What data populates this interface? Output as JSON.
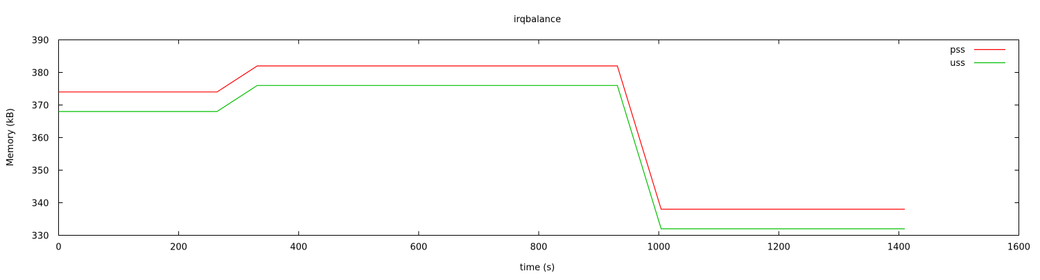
{
  "chart_data": {
    "type": "line",
    "title": "irqbalance",
    "xlabel": "time (s)",
    "ylabel": "Memory (kB)",
    "xlim": [
      0,
      1600
    ],
    "ylim": [
      330,
      390
    ],
    "xticks": [
      0,
      200,
      400,
      600,
      800,
      1000,
      1200,
      1400,
      1600
    ],
    "yticks": [
      330,
      340,
      350,
      360,
      370,
      380,
      390
    ],
    "grid": false,
    "legend_position": "top-right",
    "series": [
      {
        "name": "pss",
        "color": "#ff0000",
        "x": [
          0,
          264,
          331,
          931,
          1004,
          1410
        ],
        "y": [
          374,
          374,
          382,
          382,
          338,
          338
        ]
      },
      {
        "name": "uss",
        "color": "#00c000",
        "x": [
          0,
          264,
          331,
          931,
          1004,
          1410
        ],
        "y": [
          368,
          368,
          376,
          376,
          332,
          332
        ]
      }
    ]
  }
}
